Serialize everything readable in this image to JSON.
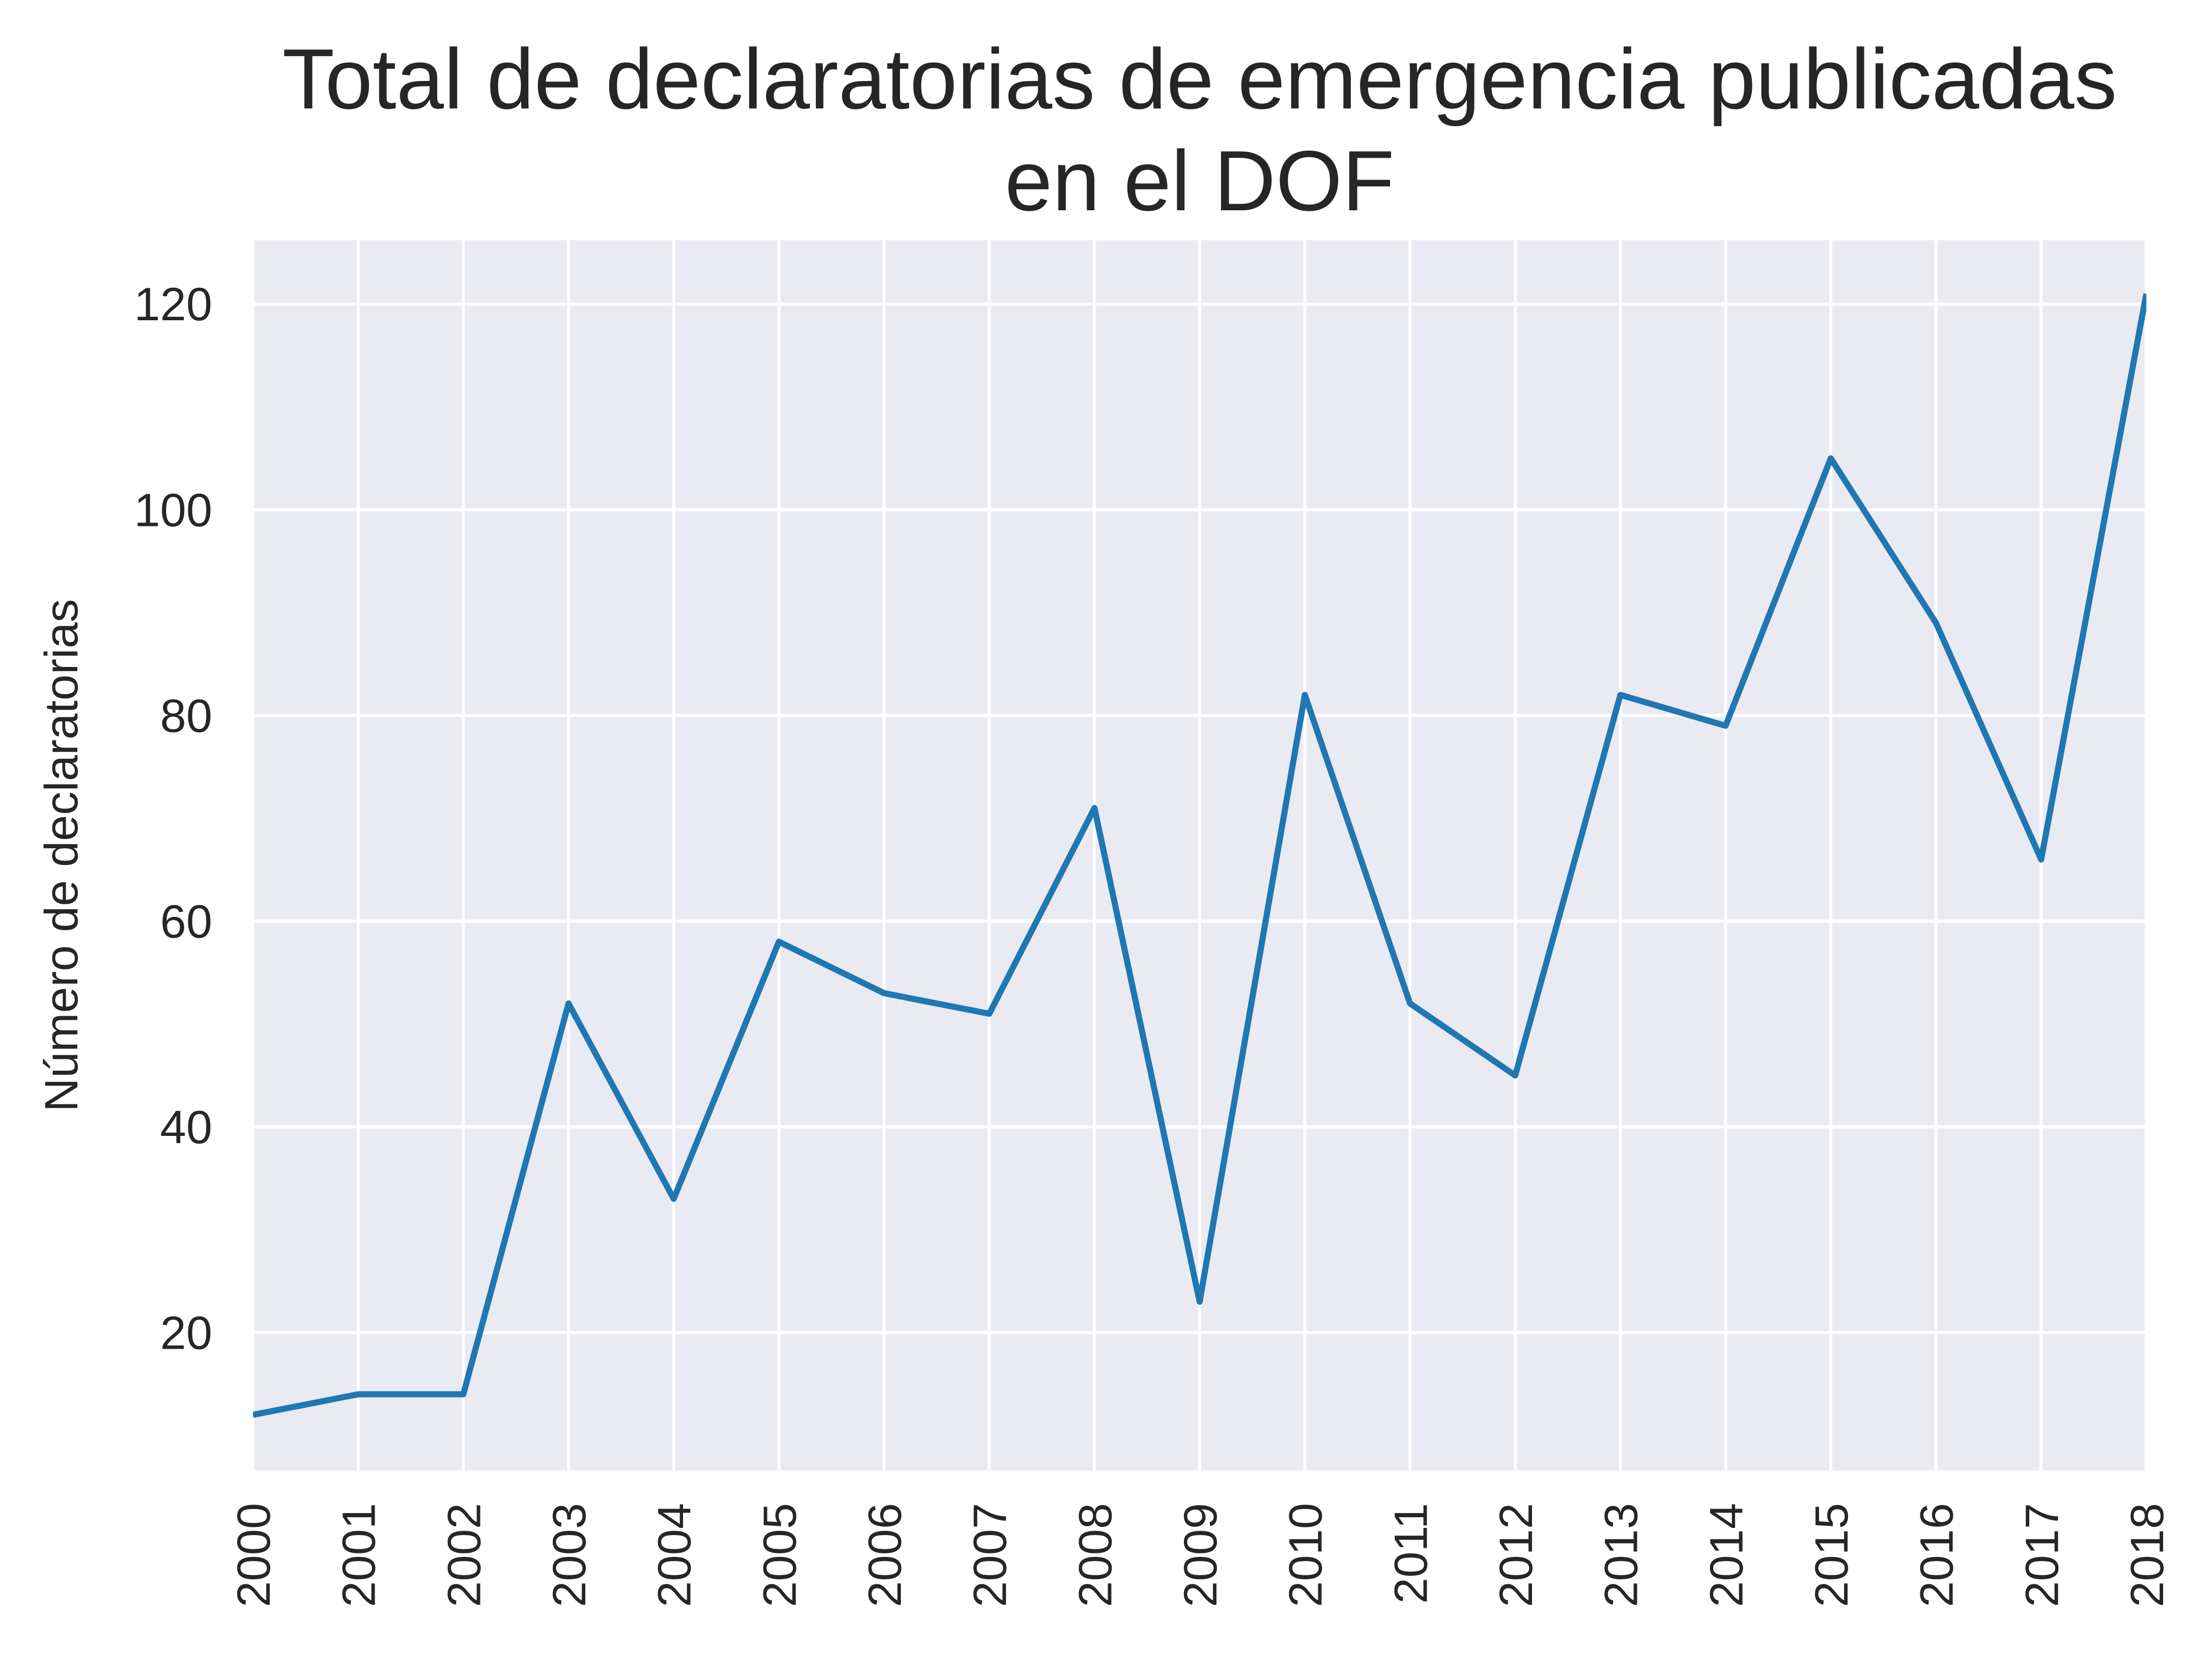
{
  "chart_data": {
    "type": "line",
    "title": [
      "Total de declaratorias de emergencia publicadas",
      "en el DOF"
    ],
    "xlabel": "",
    "ylabel": "Número de declaratorias",
    "x": [
      "2000",
      "2001",
      "2002",
      "2003",
      "2004",
      "2005",
      "2006",
      "2007",
      "2008",
      "2009",
      "2010",
      "2011",
      "2012",
      "2013",
      "2014",
      "2015",
      "2016",
      "2017",
      "2018"
    ],
    "y_ticks": [
      20,
      40,
      60,
      80,
      100,
      120
    ],
    "xlim": [
      2000,
      2018
    ],
    "ylim": [
      6.6,
      126.2
    ],
    "grid": true,
    "series": [
      {
        "values": [
          12,
          14,
          14,
          52,
          33,
          58,
          53,
          51,
          71,
          23,
          82,
          52,
          45,
          82,
          79,
          105,
          89,
          66,
          121
        ]
      }
    ],
    "colors": {
      "line": "#1f77b4",
      "plot_background": "#eaeaf2",
      "grid": "#ffffff",
      "text": "#262626"
    }
  }
}
